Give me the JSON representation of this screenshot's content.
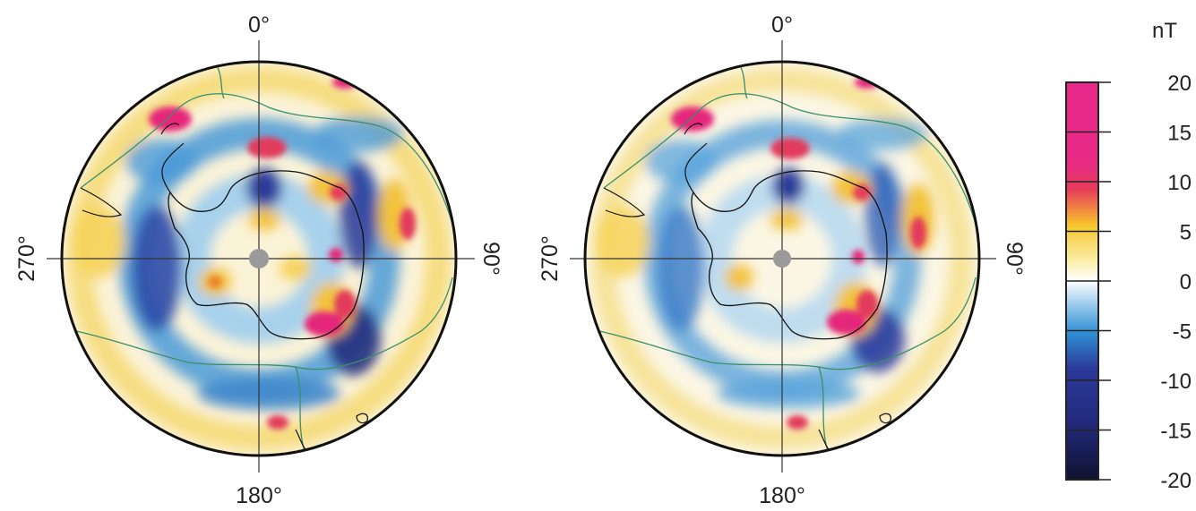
{
  "maps": [
    {
      "id": "left",
      "labels": {
        "top": "0°",
        "bottom": "180°",
        "left": "270°",
        "right": "90°"
      }
    },
    {
      "id": "right",
      "labels": {
        "top": "0°",
        "bottom": "180°",
        "left": "270°",
        "right": "90°"
      }
    }
  ],
  "colorbar": {
    "unit": "nT",
    "ticks": [
      "20",
      "15",
      "10",
      "5",
      "0",
      "-5",
      "-10",
      "-15",
      "-20"
    ],
    "colors": {
      "max": "#e8278a",
      "high": "#e63c5a",
      "warm": "#f7c62c",
      "light_warm": "#fbeeaa",
      "zero": "#ffffff",
      "light_cool": "#a9d3ef",
      "cool": "#2f8fd4",
      "deep": "#2b3a9a",
      "min": "#0f1230"
    }
  }
}
